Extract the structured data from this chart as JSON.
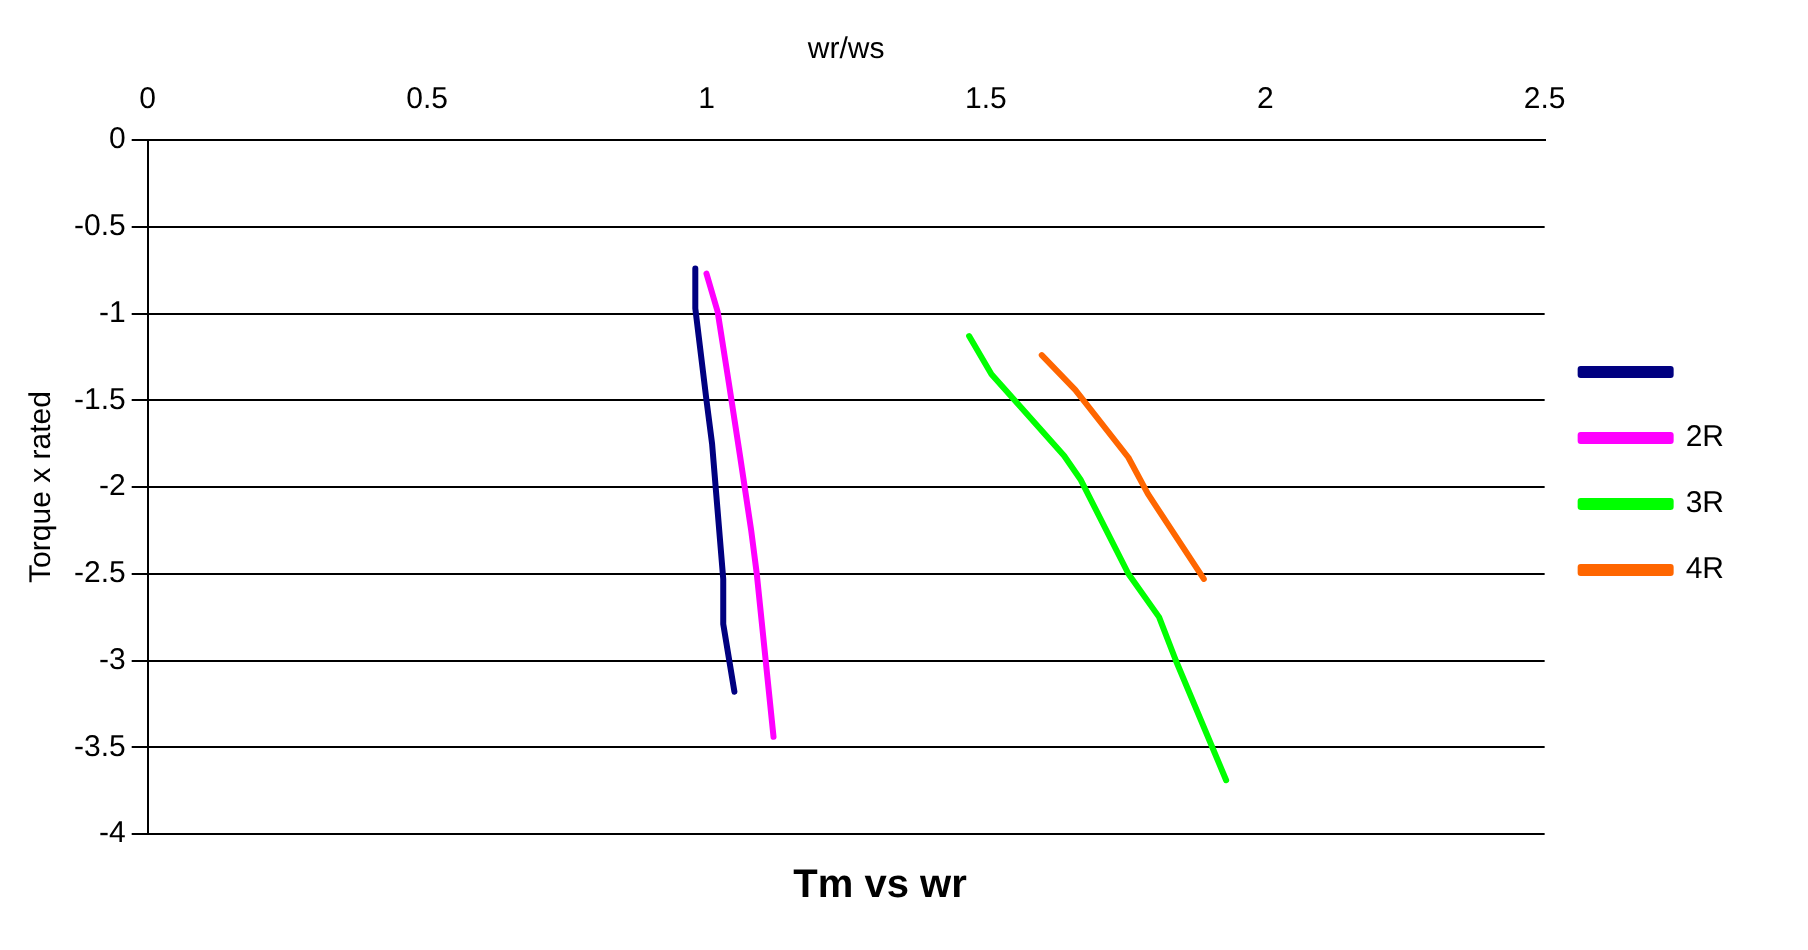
{
  "chart_data": {
    "type": "line",
    "title": "Tm vs wr",
    "xlabel": "wr/ws",
    "ylabel": "Torque x rated",
    "xlim": [
      0,
      2.5
    ],
    "xticks": [
      0,
      0.5,
      1,
      1.5,
      2,
      2.5
    ],
    "ylim": [
      -4,
      0
    ],
    "yticks": [
      -4,
      -3.5,
      -3,
      -2.5,
      -2,
      -1.5,
      -1,
      -0.5,
      0
    ],
    "grid": "y",
    "legend": "right",
    "marker": "none",
    "line_style": "solid",
    "series": [
      {
        "color": "#000080",
        "x": [
          0.98,
          0.98,
          1.0,
          1.01,
          1.03,
          1.03,
          1.05
        ],
        "values": [
          -0.74,
          -0.97,
          -1.5,
          -1.75,
          -2.53,
          -2.79,
          -3.18
        ]
      },
      {
        "name": "2R",
        "color": "#ff00ff",
        "x": [
          1.0,
          1.02,
          1.04,
          1.06,
          1.08,
          1.09,
          1.12
        ],
        "values": [
          -0.77,
          -0.99,
          -1.4,
          -1.82,
          -2.25,
          -2.5,
          -3.44
        ]
      },
      {
        "name": "3R",
        "color": "#00ff00",
        "x": [
          1.47,
          1.51,
          1.64,
          1.67,
          1.755,
          1.81,
          1.84,
          1.93
        ],
        "values": [
          -1.13,
          -1.35,
          -1.82,
          -1.96,
          -2.5,
          -2.75,
          -3.0,
          -3.69
        ]
      },
      {
        "name": "4R",
        "color": "#ff6600",
        "x": [
          1.6,
          1.66,
          1.755,
          1.79,
          1.89
        ],
        "values": [
          -1.24,
          -1.44,
          -1.83,
          -2.04,
          -2.53
        ]
      }
    ]
  }
}
